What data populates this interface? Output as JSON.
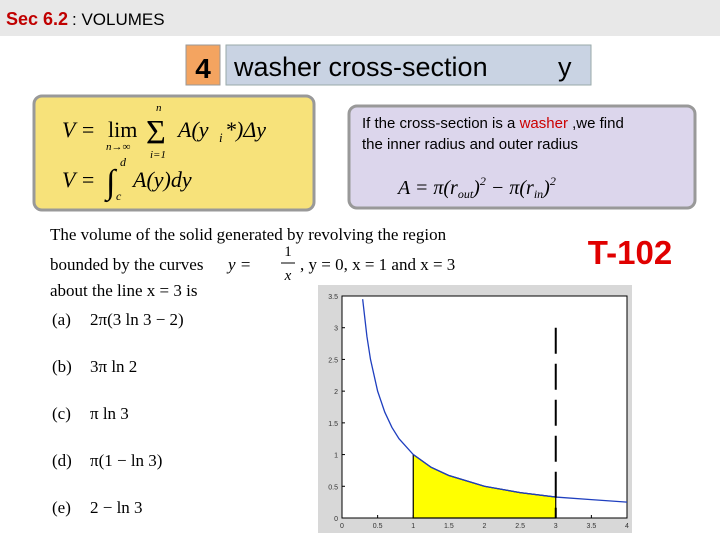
{
  "header": {
    "section": "Sec 6.2",
    "topic": ": VOLUMES"
  },
  "slide": {
    "number": "4",
    "title": "washer cross-section",
    "axis": "y"
  },
  "formulas": {
    "riemann": [
      "V =",
      "lim",
      "n→∞",
      "n",
      "Σ",
      "i=1",
      "A(y",
      "i",
      "*)Δy"
    ],
    "integral": [
      "V =",
      "∫",
      "d",
      "c",
      "A(y)dy"
    ]
  },
  "note": {
    "before": "If the cross-section is a",
    "highlight": "washer",
    "after": ",we find",
    "line2": "the inner  radius and outer radius",
    "formula": [
      "A = π(r",
      "out",
      ")",
      "2",
      " − π(r",
      "in",
      ")",
      "2"
    ]
  },
  "label": "T-102",
  "problem": {
    "line1": "The volume of the solid generated by revolving the region",
    "line2": [
      "bounded by the curves",
      "y =",
      "1",
      "x",
      ",  y = 0,  x = 1  and  x = 3"
    ],
    "line3": "about the line x = 3 is",
    "options": [
      {
        "label": "(a)",
        "answer": "2π(3 ln 3 − 2)"
      },
      {
        "label": "(b)",
        "answer": "3π ln 2"
      },
      {
        "label": "(c)",
        "answer": "π ln 3"
      },
      {
        "label": "(d)",
        "answer": "π(1 − ln 3)"
      },
      {
        "label": "(e)",
        "answer": "2 − ln 3"
      }
    ]
  },
  "graph": {
    "type": "line",
    "xlim": [
      0,
      4
    ],
    "ylim": [
      0,
      3.5
    ],
    "xticks": [
      0,
      0.5,
      1,
      1.5,
      2,
      2.5,
      3,
      3.5,
      4
    ],
    "yticks": [
      0,
      0.5,
      1,
      1.5,
      2,
      2.5,
      3,
      3.5
    ],
    "x": [
      0.29,
      0.35,
      0.4,
      0.5,
      0.6,
      0.7,
      0.8,
      1,
      1.25,
      1.5,
      2,
      2.5,
      3,
      3.5,
      4
    ],
    "values": [
      3.45,
      2.86,
      2.5,
      2,
      1.67,
      1.43,
      1.25,
      1,
      0.8,
      0.67,
      0.5,
      0.4,
      0.33,
      0.29,
      0.25
    ],
    "color": "#1f3fbf",
    "shade_x": [
      1,
      3
    ],
    "shade_color": "#ffff00",
    "revolve_x": 3
  }
}
